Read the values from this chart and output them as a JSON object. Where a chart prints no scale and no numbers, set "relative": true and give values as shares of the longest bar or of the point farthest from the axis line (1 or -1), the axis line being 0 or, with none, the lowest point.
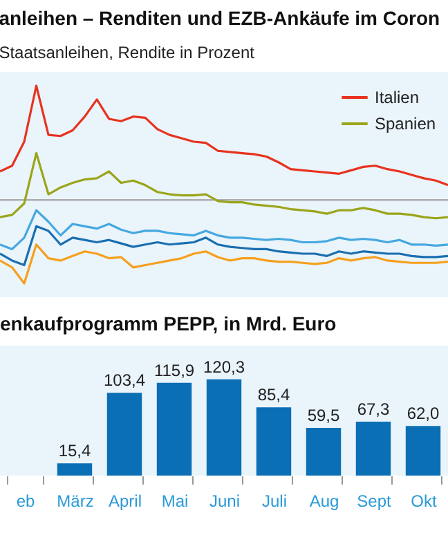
{
  "chart_data": [
    {
      "type": "line",
      "title": "anleihen – Renditen und EZB-Ankäufe im Coron",
      "subtitle": "Staatsanleihen, Rendite in Prozent",
      "relative": true,
      "legend": "top right",
      "categories": [
        null,
        null,
        null,
        null,
        null,
        null,
        null,
        null,
        null,
        null,
        null,
        null,
        null,
        null,
        null,
        null,
        null,
        null,
        null,
        null,
        null,
        null,
        null,
        null,
        null,
        null,
        null,
        null,
        null,
        null,
        null,
        null,
        null,
        null,
        null,
        null,
        null,
        null
      ],
      "series": [
        {
          "name": "Italien",
          "color": "#e8321e",
          "values": [
            0.25,
            0.3,
            0.51,
            1,
            0.57,
            0.56,
            0.61,
            0.73,
            0.88,
            0.71,
            0.69,
            0.73,
            0.72,
            0.62,
            0.57,
            0.54,
            0.51,
            0.5,
            0.43,
            0.42,
            0.41,
            0.4,
            0.38,
            0.33,
            0.27,
            0.26,
            0.25,
            0.24,
            0.23,
            0.26,
            0.29,
            0.3,
            0.27,
            0.25,
            0.22,
            0.19,
            0.17,
            0.13
          ]
        },
        {
          "name": "Spanien",
          "color": "#9aa51a",
          "values": [
            -0.15,
            -0.13,
            -0.03,
            0.41,
            0.05,
            0.11,
            0.15,
            0.18,
            0.19,
            0.25,
            0.15,
            0.17,
            0.13,
            0.07,
            0.05,
            0.04,
            0.04,
            0.05,
            -0.01,
            -0.02,
            -0.02,
            -0.04,
            -0.05,
            -0.06,
            -0.08,
            -0.09,
            -0.1,
            -0.12,
            -0.09,
            -0.09,
            -0.07,
            -0.09,
            -0.12,
            -0.12,
            -0.13,
            -0.15,
            -0.16,
            -0.15
          ]
        },
        {
          "color": "#45a8e0",
          "values": [
            -0.39,
            -0.43,
            -0.33,
            -0.09,
            -0.19,
            -0.31,
            -0.21,
            -0.23,
            -0.25,
            -0.21,
            -0.26,
            -0.29,
            -0.27,
            -0.27,
            -0.29,
            -0.3,
            -0.31,
            -0.27,
            -0.31,
            -0.33,
            -0.33,
            -0.34,
            -0.35,
            -0.34,
            -0.35,
            -0.37,
            -0.37,
            -0.36,
            -0.33,
            -0.35,
            -0.34,
            -0.35,
            -0.37,
            -0.35,
            -0.39,
            -0.39,
            -0.4,
            -0.39
          ]
        },
        {
          "color": "#1a6fb0",
          "values": [
            -0.47,
            -0.53,
            -0.57,
            -0.23,
            -0.27,
            -0.39,
            -0.33,
            -0.35,
            -0.37,
            -0.35,
            -0.38,
            -0.41,
            -0.39,
            -0.37,
            -0.39,
            -0.38,
            -0.37,
            -0.33,
            -0.39,
            -0.41,
            -0.42,
            -0.43,
            -0.43,
            -0.45,
            -0.46,
            -0.47,
            -0.47,
            -0.49,
            -0.45,
            -0.47,
            -0.45,
            -0.46,
            -0.47,
            -0.47,
            -0.49,
            -0.5,
            -0.5,
            -0.49
          ]
        },
        {
          "color": "#f5a01e",
          "values": [
            -0.53,
            -0.59,
            -0.73,
            -0.39,
            -0.51,
            -0.53,
            -0.49,
            -0.45,
            -0.47,
            -0.51,
            -0.5,
            -0.59,
            -0.57,
            -0.55,
            -0.53,
            -0.51,
            -0.47,
            -0.45,
            -0.5,
            -0.53,
            -0.51,
            -0.51,
            -0.53,
            -0.54,
            -0.54,
            -0.55,
            -0.56,
            -0.55,
            -0.51,
            -0.53,
            -0.51,
            -0.5,
            -0.53,
            -0.54,
            -0.55,
            -0.55,
            -0.55,
            -0.54
          ]
        }
      ]
    },
    {
      "type": "bar",
      "title": "enkaufprogramm PEPP, in Mrd. Euro",
      "categories": [
        "eb",
        "März",
        "April",
        "Mai",
        "Juni",
        "Juli",
        "Aug",
        "Sept",
        "Okt"
      ],
      "values": [
        null,
        15.4,
        103.4,
        115.9,
        120.3,
        85.4,
        59.5,
        67.3,
        62.0
      ],
      "value_labels": [
        null,
        "15,4",
        "103,4",
        "115,9",
        "120,3",
        "85,4",
        "59,5",
        "67,3",
        "62,0"
      ],
      "color": "#0a6fb4"
    }
  ]
}
